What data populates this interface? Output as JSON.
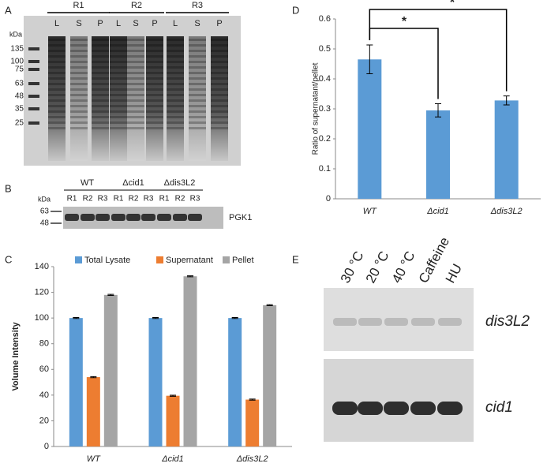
{
  "panel_labels": [
    "A",
    "B",
    "C",
    "D",
    "E"
  ],
  "gel_a": {
    "kda": "kDa",
    "markers": [
      135,
      100,
      75,
      63,
      48,
      35,
      25
    ],
    "groups": [
      "R1",
      "R2",
      "R3"
    ],
    "lanes": [
      "L",
      "S",
      "P",
      "L",
      "S",
      "P",
      "L",
      "S",
      "P"
    ]
  },
  "blot_b": {
    "kda": "kDa",
    "markers": [
      63,
      48
    ],
    "groups": [
      "WT",
      "Δcid1",
      "Δdis3L2"
    ],
    "lanes": [
      "R1",
      "R2",
      "R3",
      "R1",
      "R2",
      "R3",
      "R1",
      "R2",
      "R3"
    ],
    "protein": "PGK1"
  },
  "northern_e": {
    "conditions": [
      "30 °C",
      "20 °C",
      "40 °C",
      "Caffeine",
      "HU"
    ],
    "genes": [
      "dis3L2",
      "cid1"
    ]
  },
  "chart_data": [
    {
      "type": "bar",
      "categories": [
        "WT",
        "Δcid1",
        "Δdis3L2"
      ],
      "ylabel": "Volume Intensity",
      "series": [
        {
          "name": "Total Lysate",
          "color": "#5b9bd5",
          "values": [
            100,
            100,
            100
          ],
          "errors": [
            0.4,
            0.4,
            0.4
          ]
        },
        {
          "name": "Supernatant",
          "color": "#ed7d31",
          "values": [
            54,
            39.5,
            36.5
          ],
          "errors": [
            0.4,
            0.4,
            0.4
          ]
        },
        {
          "name": "Pellet",
          "color": "#a5a5a5",
          "values": [
            118,
            132.5,
            110
          ],
          "errors": [
            0.4,
            0.4,
            0.4
          ]
        }
      ],
      "ylim": [
        0,
        140
      ],
      "yticks": [
        0,
        20,
        40,
        60,
        80,
        100,
        120,
        140
      ],
      "legend": "top"
    },
    {
      "type": "bar",
      "categories": [
        "WT",
        "Δcid1",
        "Δdis3L2"
      ],
      "ylabel": "Ratio of supernatant/pellet",
      "values": [
        0.465,
        0.295,
        0.328
      ],
      "errors": [
        0.048,
        0.022,
        0.015
      ],
      "color": "#5b9bd5",
      "ylim": [
        0,
        0.6
      ],
      "yticks": [
        0,
        0.1,
        0.2,
        0.3,
        0.4,
        0.5,
        0.6
      ],
      "annotations": [
        "*",
        "*"
      ]
    }
  ]
}
